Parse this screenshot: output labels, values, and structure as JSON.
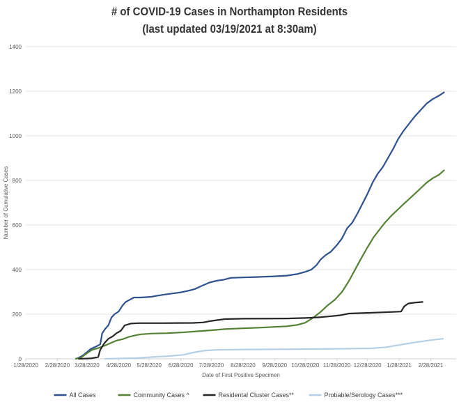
{
  "chart_data": {
    "type": "line",
    "title": "# of COVID-19 Cases in Northampton Residents",
    "subtitle": "(last updated 03/19/2021 at 8:30am)",
    "xlabel": "Date of First Positive Specimen",
    "ylabel": "Number of Cumulative Cases",
    "ylim": [
      0,
      1400
    ],
    "xlim": [
      "2020-01-28",
      "2021-03-25"
    ],
    "grid": true,
    "legend_position": "bottom",
    "y_ticks": [
      0,
      200,
      400,
      600,
      800,
      1000,
      1200,
      1400
    ],
    "x_ticks": [
      {
        "date": "2020-01-28",
        "label": "1/28/2020"
      },
      {
        "date": "2020-02-28",
        "label": "2/28/2020"
      },
      {
        "date": "2020-03-28",
        "label": "3/28/2020"
      },
      {
        "date": "2020-04-28",
        "label": "4/28/2020"
      },
      {
        "date": "2020-05-28",
        "label": "5/28/2020"
      },
      {
        "date": "2020-06-28",
        "label": "6/28/2020"
      },
      {
        "date": "2020-07-28",
        "label": "7/28/2020"
      },
      {
        "date": "2020-08-28",
        "label": "8/28/2020"
      },
      {
        "date": "2020-09-28",
        "label": "9/28/2020"
      },
      {
        "date": "2020-10-28",
        "label": "10/28/2020"
      },
      {
        "date": "2020-11-28",
        "label": "11/28/2020"
      },
      {
        "date": "2020-12-28",
        "label": "12/28/2020"
      },
      {
        "date": "2021-01-28",
        "label": "1/28/2021"
      },
      {
        "date": "2021-02-28",
        "label": "2/28/2021"
      }
    ],
    "series": [
      {
        "name": "All Cases",
        "color": "#2f528f",
        "points": [
          [
            "2020-03-17",
            0
          ],
          [
            "2020-03-20",
            5
          ],
          [
            "2020-03-24",
            15
          ],
          [
            "2020-03-28",
            30
          ],
          [
            "2020-04-01",
            45
          ],
          [
            "2020-04-06",
            55
          ],
          [
            "2020-04-10",
            65
          ],
          [
            "2020-04-12",
            115
          ],
          [
            "2020-04-15",
            135
          ],
          [
            "2020-04-18",
            150
          ],
          [
            "2020-04-21",
            185
          ],
          [
            "2020-04-24",
            200
          ],
          [
            "2020-04-28",
            212
          ],
          [
            "2020-05-02",
            240
          ],
          [
            "2020-05-05",
            255
          ],
          [
            "2020-05-09",
            265
          ],
          [
            "2020-05-13",
            275
          ],
          [
            "2020-05-20",
            275
          ],
          [
            "2020-05-30",
            278
          ],
          [
            "2020-06-05",
            283
          ],
          [
            "2020-06-12",
            288
          ],
          [
            "2020-06-20",
            293
          ],
          [
            "2020-06-28",
            298
          ],
          [
            "2020-07-05",
            305
          ],
          [
            "2020-07-12",
            313
          ],
          [
            "2020-07-19",
            328
          ],
          [
            "2020-07-26",
            342
          ],
          [
            "2020-08-02",
            350
          ],
          [
            "2020-08-09",
            355
          ],
          [
            "2020-08-16",
            363
          ],
          [
            "2020-08-28",
            365
          ],
          [
            "2020-09-10",
            367
          ],
          [
            "2020-09-28",
            370
          ],
          [
            "2020-10-10",
            373
          ],
          [
            "2020-10-20",
            380
          ],
          [
            "2020-10-28",
            390
          ],
          [
            "2020-11-03",
            400
          ],
          [
            "2020-11-08",
            420
          ],
          [
            "2020-11-12",
            445
          ],
          [
            "2020-11-17",
            465
          ],
          [
            "2020-11-22",
            480
          ],
          [
            "2020-11-28",
            510
          ],
          [
            "2020-12-03",
            540
          ],
          [
            "2020-12-08",
            585
          ],
          [
            "2020-12-13",
            610
          ],
          [
            "2020-12-18",
            650
          ],
          [
            "2020-12-23",
            695
          ],
          [
            "2020-12-28",
            740
          ],
          [
            "2021-01-02",
            790
          ],
          [
            "2021-01-07",
            830
          ],
          [
            "2021-01-12",
            860
          ],
          [
            "2021-01-17",
            900
          ],
          [
            "2021-01-22",
            940
          ],
          [
            "2021-01-27",
            985
          ],
          [
            "2021-02-01",
            1020
          ],
          [
            "2021-02-06",
            1050
          ],
          [
            "2021-02-12",
            1085
          ],
          [
            "2021-02-18",
            1115
          ],
          [
            "2021-02-24",
            1145
          ],
          [
            "2021-03-02",
            1165
          ],
          [
            "2021-03-08",
            1180
          ],
          [
            "2021-03-13",
            1195
          ]
        ]
      },
      {
        "name": "Community Cases ^",
        "color": "#548235",
        "points": [
          [
            "2020-03-17",
            0
          ],
          [
            "2020-03-22",
            5
          ],
          [
            "2020-03-28",
            25
          ],
          [
            "2020-04-02",
            40
          ],
          [
            "2020-04-08",
            48
          ],
          [
            "2020-04-14",
            58
          ],
          [
            "2020-04-20",
            70
          ],
          [
            "2020-04-26",
            82
          ],
          [
            "2020-05-02",
            88
          ],
          [
            "2020-05-08",
            98
          ],
          [
            "2020-05-14",
            105
          ],
          [
            "2020-05-20",
            110
          ],
          [
            "2020-05-30",
            113
          ],
          [
            "2020-06-15",
            115
          ],
          [
            "2020-06-28",
            118
          ],
          [
            "2020-07-10",
            122
          ],
          [
            "2020-07-28",
            128
          ],
          [
            "2020-08-10",
            133
          ],
          [
            "2020-08-28",
            137
          ],
          [
            "2020-09-15",
            140
          ],
          [
            "2020-09-28",
            143
          ],
          [
            "2020-10-10",
            146
          ],
          [
            "2020-10-20",
            152
          ],
          [
            "2020-10-28",
            162
          ],
          [
            "2020-11-05",
            185
          ],
          [
            "2020-11-12",
            210
          ],
          [
            "2020-11-19",
            240
          ],
          [
            "2020-11-26",
            265
          ],
          [
            "2020-12-03",
            300
          ],
          [
            "2020-12-10",
            350
          ],
          [
            "2020-12-17",
            410
          ],
          [
            "2020-12-23",
            460
          ],
          [
            "2020-12-28",
            500
          ],
          [
            "2021-01-03",
            545
          ],
          [
            "2021-01-08",
            575
          ],
          [
            "2021-01-14",
            610
          ],
          [
            "2021-01-20",
            640
          ],
          [
            "2021-01-28",
            675
          ],
          [
            "2021-02-04",
            705
          ],
          [
            "2021-02-10",
            730
          ],
          [
            "2021-02-17",
            760
          ],
          [
            "2021-02-24",
            790
          ],
          [
            "2021-03-02",
            810
          ],
          [
            "2021-03-08",
            825
          ],
          [
            "2021-03-13",
            845
          ]
        ]
      },
      {
        "name": "Residental Cluster Cases**",
        "color": "#262626",
        "points": [
          [
            "2020-03-20",
            0
          ],
          [
            "2020-04-01",
            2
          ],
          [
            "2020-04-08",
            8
          ],
          [
            "2020-04-10",
            40
          ],
          [
            "2020-04-14",
            70
          ],
          [
            "2020-04-18",
            90
          ],
          [
            "2020-04-22",
            100
          ],
          [
            "2020-04-26",
            115
          ],
          [
            "2020-04-30",
            125
          ],
          [
            "2020-05-04",
            150
          ],
          [
            "2020-05-10",
            158
          ],
          [
            "2020-05-18",
            160
          ],
          [
            "2020-06-10",
            160
          ],
          [
            "2020-07-10",
            161
          ],
          [
            "2020-07-20",
            163
          ],
          [
            "2020-07-28",
            170
          ],
          [
            "2020-08-10",
            178
          ],
          [
            "2020-08-28",
            180
          ],
          [
            "2020-10-10",
            181
          ],
          [
            "2020-10-28",
            183
          ],
          [
            "2020-11-10",
            186
          ],
          [
            "2020-11-20",
            190
          ],
          [
            "2020-12-01",
            195
          ],
          [
            "2020-12-10",
            203
          ],
          [
            "2020-12-28",
            206
          ],
          [
            "2021-01-20",
            210
          ],
          [
            "2021-01-30",
            212
          ],
          [
            "2021-02-02",
            235
          ],
          [
            "2021-02-06",
            248
          ],
          [
            "2021-02-12",
            252
          ],
          [
            "2021-02-20",
            255
          ]
        ]
      },
      {
        "name": "Probable/Serology Cases***",
        "color": "#b4cfe6",
        "points": [
          [
            "2020-04-15",
            0
          ],
          [
            "2020-05-15",
            3
          ],
          [
            "2020-06-01",
            8
          ],
          [
            "2020-06-15",
            12
          ],
          [
            "2020-07-01",
            18
          ],
          [
            "2020-07-10",
            28
          ],
          [
            "2020-07-20",
            36
          ],
          [
            "2020-08-01",
            40
          ],
          [
            "2020-09-01",
            42
          ],
          [
            "2020-10-15",
            43
          ],
          [
            "2020-12-01",
            45
          ],
          [
            "2021-01-01",
            47
          ],
          [
            "2021-01-15",
            52
          ],
          [
            "2021-01-28",
            62
          ],
          [
            "2021-02-10",
            72
          ],
          [
            "2021-02-25",
            82
          ],
          [
            "2021-03-08",
            88
          ],
          [
            "2021-03-12",
            90
          ]
        ]
      }
    ]
  }
}
